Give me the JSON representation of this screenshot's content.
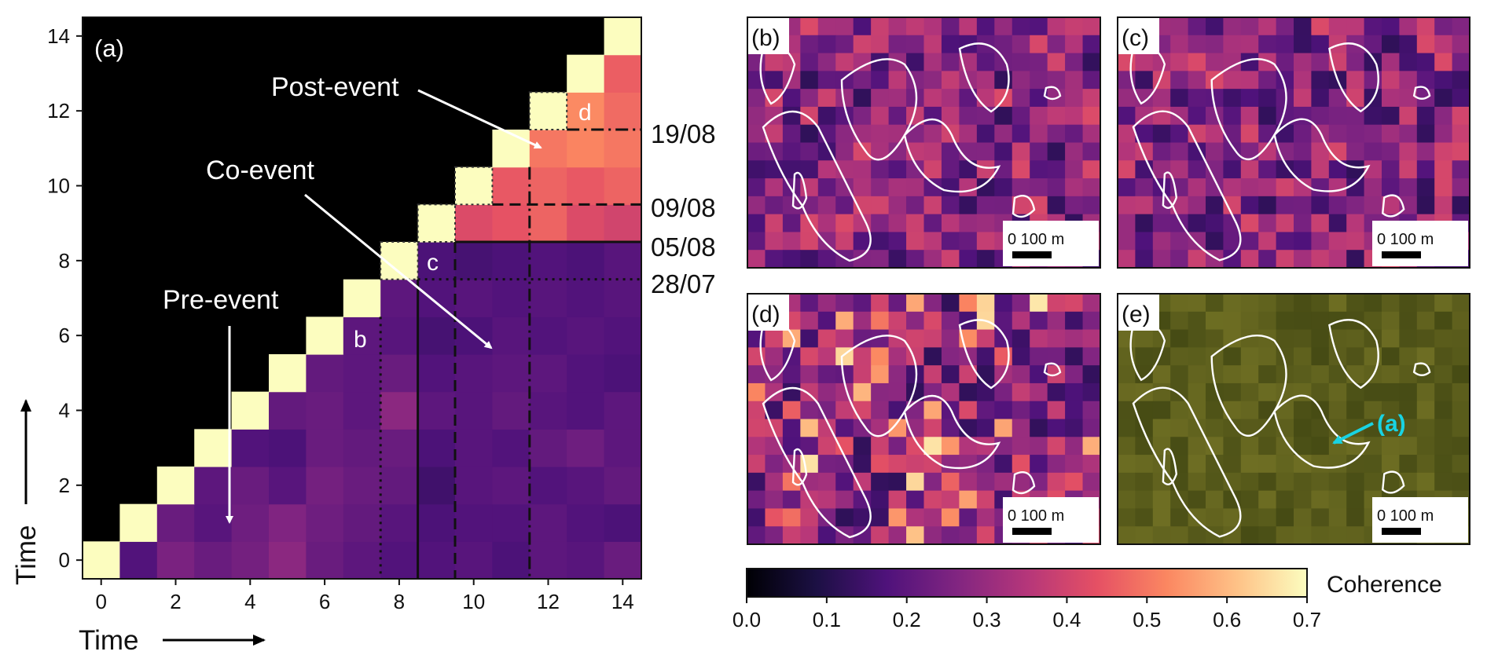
{
  "chart_data": [
    {
      "panel": "(a)",
      "type": "heatmap",
      "xlabel": "Time",
      "ylabel": "Time",
      "xlim": [
        -0.5,
        14.5
      ],
      "ylim": [
        -0.5,
        14.5
      ],
      "xticks": [
        "0",
        "2",
        "4",
        "6",
        "8",
        "10",
        "12",
        "14"
      ],
      "yticks": [
        "0",
        "2",
        "4",
        "6",
        "8",
        "10",
        "12",
        "14"
      ],
      "colormap": "magma",
      "grid": false,
      "diagonal_value": 0.7,
      "upper_triangle": "masked (black)",
      "values_row_major_from_y0": [
        [
          0.7,
          0.18,
          0.25,
          0.22,
          0.24,
          0.28,
          0.22,
          0.2,
          0.18,
          0.18,
          0.19,
          0.17,
          0.2,
          0.19,
          0.22
        ],
        [
          null,
          0.7,
          0.22,
          0.19,
          0.23,
          0.26,
          0.23,
          0.21,
          0.19,
          0.17,
          0.18,
          0.18,
          0.2,
          0.18,
          0.17
        ],
        [
          null,
          null,
          0.7,
          0.2,
          0.22,
          0.19,
          0.24,
          0.22,
          0.21,
          0.15,
          0.19,
          0.2,
          0.18,
          0.19,
          0.21
        ],
        [
          null,
          null,
          null,
          0.7,
          0.18,
          0.17,
          0.22,
          0.21,
          0.22,
          0.17,
          0.19,
          0.18,
          0.21,
          0.23,
          0.2
        ],
        [
          null,
          null,
          null,
          null,
          0.7,
          0.21,
          0.22,
          0.2,
          0.28,
          0.2,
          0.19,
          0.21,
          0.19,
          0.18,
          0.2
        ],
        [
          null,
          null,
          null,
          null,
          null,
          0.7,
          0.21,
          0.2,
          0.22,
          0.18,
          0.19,
          0.2,
          0.2,
          0.18,
          0.17
        ],
        [
          null,
          null,
          null,
          null,
          null,
          null,
          0.7,
          0.2,
          0.19,
          0.16,
          0.17,
          0.19,
          0.18,
          0.19,
          0.18
        ],
        [
          null,
          null,
          null,
          null,
          null,
          null,
          null,
          0.7,
          0.2,
          0.18,
          0.19,
          0.18,
          0.19,
          0.18,
          0.19
        ],
        [
          null,
          null,
          null,
          null,
          null,
          null,
          null,
          null,
          0.7,
          0.17,
          0.16,
          0.17,
          0.18,
          0.17,
          0.19
        ],
        [
          null,
          null,
          null,
          null,
          null,
          null,
          null,
          null,
          null,
          0.7,
          0.42,
          0.44,
          0.47,
          0.42,
          0.4
        ],
        [
          null,
          null,
          null,
          null,
          null,
          null,
          null,
          null,
          null,
          null,
          0.7,
          0.45,
          0.47,
          0.45,
          0.47
        ],
        [
          null,
          null,
          null,
          null,
          null,
          null,
          null,
          null,
          null,
          null,
          null,
          0.7,
          0.5,
          0.52,
          0.5
        ],
        [
          null,
          null,
          null,
          null,
          null,
          null,
          null,
          null,
          null,
          null,
          null,
          null,
          0.7,
          0.53,
          0.48
        ],
        [
          null,
          null,
          null,
          null,
          null,
          null,
          null,
          null,
          null,
          null,
          null,
          null,
          null,
          0.7,
          0.46
        ],
        [
          null,
          null,
          null,
          null,
          null,
          null,
          null,
          null,
          null,
          null,
          null,
          null,
          null,
          null,
          0.7
        ]
      ],
      "separators": [
        {
          "at": 7.5,
          "style": "dotted",
          "date": "28/07"
        },
        {
          "at": 8.5,
          "style": "solid",
          "date": "05/08"
        },
        {
          "at": 9.5,
          "style": "dashed",
          "date": "09/08"
        },
        {
          "at": 11.5,
          "style": "dashdot",
          "date": "19/08"
        }
      ],
      "annotations": {
        "panel_label": "(a)",
        "pre_event": "Pre-event",
        "co_event": "Co-event",
        "post_event": "Post-event",
        "cell_b": "b",
        "cell_c": "c",
        "cell_d": "d"
      }
    }
  ],
  "maps": [
    {
      "label": "(b)",
      "kind": "coherence",
      "scale_text": "0   100 m"
    },
    {
      "label": "(c)",
      "kind": "coherence",
      "scale_text": "0   100 m"
    },
    {
      "label": "(d)",
      "kind": "coherence",
      "scale_text": "0   100 m"
    },
    {
      "label": "(e)",
      "kind": "optical",
      "scale_text": "0   100 m",
      "callout": "(a)"
    }
  ],
  "colorbar": {
    "label": "Coherence",
    "min": 0.0,
    "max": 0.7,
    "ticks": [
      "0.0",
      "0.1",
      "0.2",
      "0.3",
      "0.4",
      "0.5",
      "0.6",
      "0.7"
    ]
  },
  "colors": {
    "magma_stops": [
      "#000004",
      "#1c1044",
      "#4f127b",
      "#812581",
      "#b5367a",
      "#e55064",
      "#fb8761",
      "#fec287",
      "#fcfdbf"
    ],
    "outline": "#ffffff",
    "callout": "#19d3e3"
  }
}
